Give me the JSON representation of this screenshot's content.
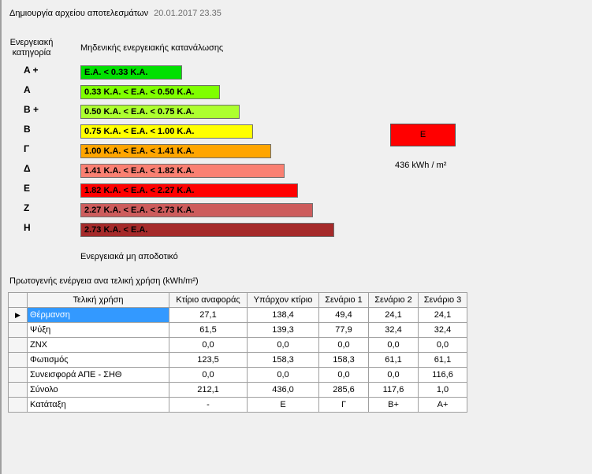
{
  "header": {
    "title": "Δημιουργία αρχείου αποτελεσμάτων",
    "timestamp": "20.01.2017 23.35"
  },
  "category_header": {
    "label": "Ενεργειακή κατηγορία",
    "scale_label": "Μηδενικής ενεργειακής κατανάλωσης",
    "bottom_label": "Ενεργειακά μη αποδοτικό"
  },
  "categories": [
    {
      "letter": "A +",
      "range": "Ε.Α. < 0.33 Κ.Α.",
      "color": "#00e000"
    },
    {
      "letter": "A",
      "range": "0.33 Κ.Α. < Ε.Α. < 0.50 Κ.Α.",
      "color": "#7fff00"
    },
    {
      "letter": "B +",
      "range": "0.50 Κ.Α. < Ε.Α. < 0.75 Κ.Α.",
      "color": "#adff2f"
    },
    {
      "letter": "B",
      "range": "0.75 Κ.Α. < Ε.Α. < 1.00 Κ.Α.",
      "color": "#ffff00"
    },
    {
      "letter": "Γ",
      "range": "1.00 Κ.Α. < Ε.Α. < 1.41 Κ.Α.",
      "color": "#ffa500"
    },
    {
      "letter": "Δ",
      "range": "1.41 Κ.Α. < Ε.Α. < 1.82 Κ.Α.",
      "color": "#fa8072"
    },
    {
      "letter": "Ε",
      "range": "1.82 Κ.Α. < Ε.Α. < 2.27 Κ.Α.",
      "color": "#ff0000"
    },
    {
      "letter": "Ζ",
      "range": "2.27 Κ.Α. < Ε.Α. < 2.73 Κ.Α.",
      "color": "#cd5c5c"
    },
    {
      "letter": "Η",
      "range": "2.73 Κ.Α. < Ε.Α.",
      "color": "#a52a2a"
    }
  ],
  "result": {
    "class": "Ε",
    "value": "436 kWh / m²",
    "color": "#ff0000"
  },
  "table": {
    "title": "Πρωτογενής ενέργεια ανα τελική χρήση (kWh/m²)",
    "columns": [
      "Τελική χρήση",
      "Κτίριο αναφοράς",
      "Υπάρχον κτίριο",
      "Σενάριο 1",
      "Σενάριο 2",
      "Σενάριο 3"
    ],
    "rows": [
      {
        "marker": "▶",
        "cells": [
          "Θέρμανση",
          "27,1",
          "138,4",
          "49,4",
          "24,1",
          "24,1"
        ]
      },
      {
        "marker": "",
        "cells": [
          "Ψύξη",
          "61,5",
          "139,3",
          "77,9",
          "32,4",
          "32,4"
        ]
      },
      {
        "marker": "",
        "cells": [
          "ΖΝΧ",
          "0,0",
          "0,0",
          "0,0",
          "0,0",
          "0,0"
        ]
      },
      {
        "marker": "",
        "cells": [
          "Φωτισμός",
          "123,5",
          "158,3",
          "158,3",
          "61,1",
          "61,1"
        ]
      },
      {
        "marker": "",
        "cells": [
          "Συνεισφορά ΑΠΕ - ΣΗΘ",
          "0,0",
          "0,0",
          "0,0",
          "0,0",
          "116,6"
        ]
      },
      {
        "marker": "",
        "cells": [
          "Σύνολο",
          "212,1",
          "436,0",
          "285,6",
          "117,6",
          "1,0"
        ]
      },
      {
        "marker": "",
        "cells": [
          "Κατάταξη",
          "-",
          "Ε",
          "Γ",
          "Β+",
          "Α+"
        ]
      }
    ]
  }
}
